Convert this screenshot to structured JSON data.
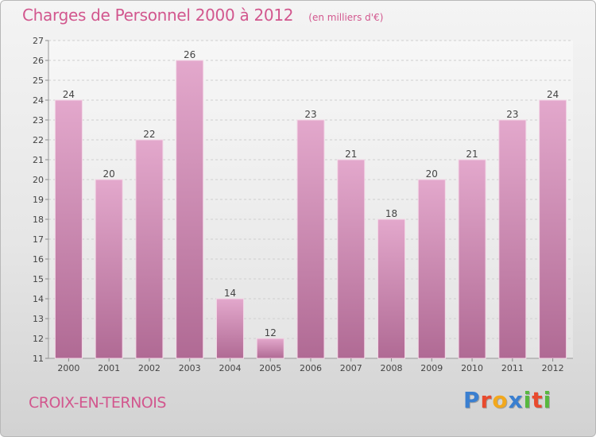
{
  "header": {
    "title": "Charges de Personnel 2000 à 2012",
    "subtitle": "(en milliers d'€)"
  },
  "footer": {
    "commune": "CROIX-EN-TERNOIS",
    "logo_letters": [
      {
        "char": "P",
        "color": "#3a7fd0"
      },
      {
        "char": "r",
        "color": "#e84a2e"
      },
      {
        "char": "o",
        "color": "#f2a81d"
      },
      {
        "char": "x",
        "color": "#3a7fd0"
      },
      {
        "char": "i",
        "color": "#58b83f"
      },
      {
        "char": "t",
        "color": "#e84a2e"
      },
      {
        "char": "i",
        "color": "#58b83f"
      }
    ]
  },
  "colors": {
    "bar_top": "#e3a8cc",
    "bar_bottom": "#b06a94",
    "title": "#d2578e"
  },
  "chart_data": {
    "type": "bar",
    "categories": [
      "2000",
      "2001",
      "2002",
      "2003",
      "2004",
      "2005",
      "2006",
      "2007",
      "2008",
      "2009",
      "2010",
      "2011",
      "2012"
    ],
    "values": [
      24,
      20,
      22,
      26,
      14,
      12,
      23,
      21,
      18,
      20,
      21,
      23,
      24
    ],
    "ylim": [
      11,
      27
    ],
    "yticks": [
      11,
      12,
      13,
      14,
      15,
      16,
      17,
      18,
      19,
      20,
      21,
      22,
      23,
      24,
      25,
      26,
      27
    ],
    "grid": "horizontal dashed",
    "legend": "none"
  }
}
